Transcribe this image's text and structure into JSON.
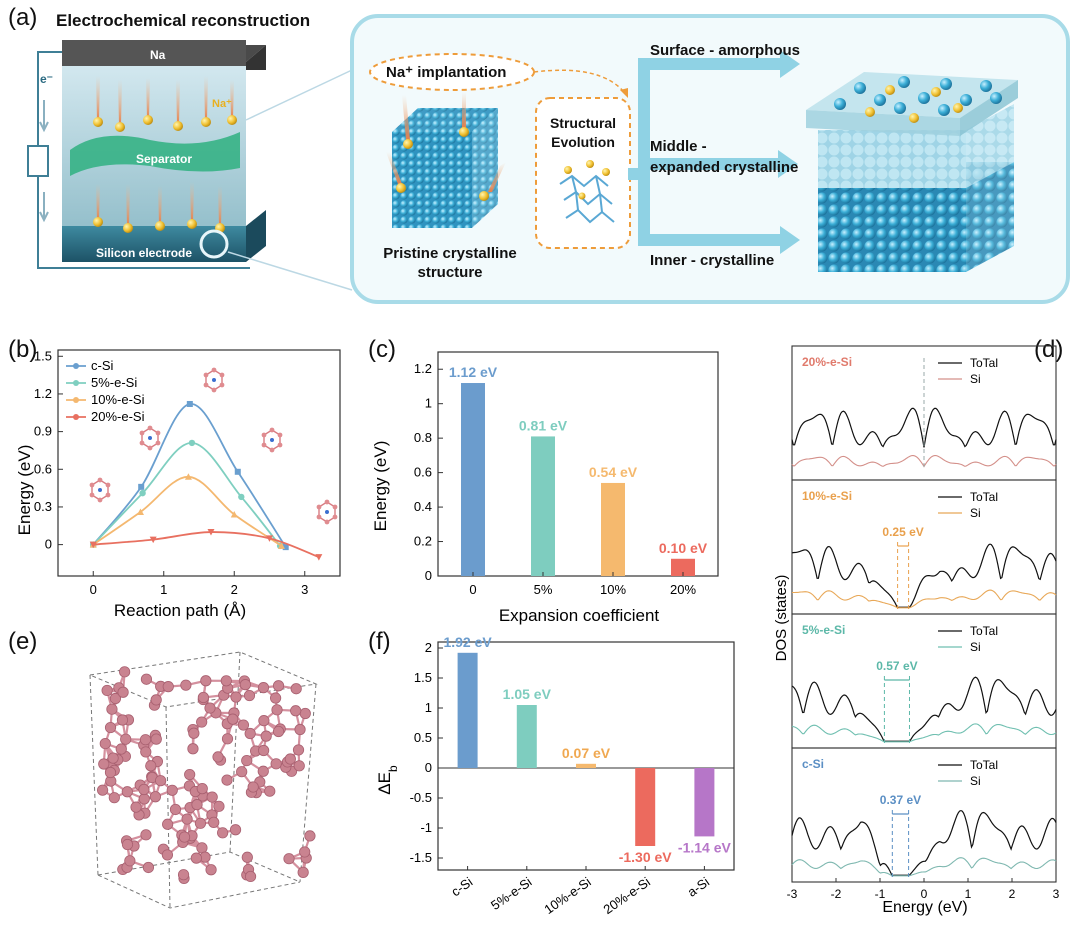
{
  "panel_a": {
    "label": "(a)",
    "title": "Electrochemical reconstruction",
    "na_label": "Na",
    "electron_label": "e⁻",
    "na_ion_label": "Na⁺",
    "separator_label": "Separator",
    "electrode_label": "Silicon electrode",
    "implantation_label": "Na⁺ implantation",
    "pristine_label_1": "Pristine crystalline",
    "pristine_label_2": "structure",
    "evolution_label_1": "Structural",
    "evolution_label_2": "Evolution",
    "surface_label": "Surface - amorphous",
    "middle_label_1": "Middle -",
    "middle_label_2": "expanded crystalline",
    "inner_label": "Inner - crystalline"
  },
  "panel_b": {
    "label": "(b)"
  },
  "panel_c": {
    "label": "(c)"
  },
  "panel_d": {
    "label": "(d)"
  },
  "panel_e": {
    "label": "(e)"
  },
  "panel_f": {
    "label": "(f)"
  },
  "chart_data": [
    {
      "id": "b",
      "type": "line",
      "xlabel": "Reaction path (Å)",
      "ylabel": "Energy (eV)",
      "xlim": [
        -0.5,
        3.5
      ],
      "ylim": [
        -0.25,
        1.55
      ],
      "xticks": [
        0,
        1,
        2,
        3
      ],
      "yticks": [
        0,
        0.3,
        0.6,
        0.9,
        1.2,
        1.5
      ],
      "series": [
        {
          "name": "c-Si",
          "color": "#6a9fcf",
          "marker": "square",
          "x": [
            0,
            0.68,
            1.37,
            2.05,
            2.73
          ],
          "y": [
            0,
            0.46,
            1.12,
            0.58,
            -0.02
          ]
        },
        {
          "name": "5%-e-Si",
          "color": "#7fcfc0",
          "marker": "circle",
          "x": [
            0,
            0.7,
            1.4,
            2.1,
            2.65
          ],
          "y": [
            0,
            0.41,
            0.81,
            0.38,
            -0.01
          ]
        },
        {
          "name": "10%-e-Si",
          "color": "#f4b870",
          "marker": "triangle-up",
          "x": [
            0,
            0.67,
            1.35,
            2.0,
            2.67
          ],
          "y": [
            0,
            0.26,
            0.54,
            0.24,
            -0.01
          ]
        },
        {
          "name": "20%-e-Si",
          "color": "#e87060",
          "marker": "triangle-down",
          "x": [
            0,
            0.85,
            1.67,
            2.5,
            3.2
          ],
          "y": [
            0,
            0.04,
            0.1,
            0.05,
            -0.1
          ]
        }
      ]
    },
    {
      "id": "c",
      "type": "bar",
      "xlabel": "Expansion coefficient",
      "ylabel": "Energy (eV)",
      "ylim": [
        0,
        1.3
      ],
      "yticks": [
        0,
        0.2,
        0.4,
        0.6,
        0.8,
        1,
        1.2
      ],
      "categories": [
        "0",
        "5%",
        "10%",
        "20%"
      ],
      "values": [
        1.12,
        0.81,
        0.54,
        0.1
      ],
      "data_labels": [
        "1.12 eV",
        "0.81 eV",
        "0.54 eV",
        "0.10 eV"
      ],
      "colors": [
        "#6b9ccd",
        "#7ecdbf",
        "#f5b96e",
        "#ec6a5e"
      ]
    },
    {
      "id": "d",
      "type": "line",
      "xlabel": "Energy (eV)",
      "ylabel": "DOS (states)",
      "xlim": [
        -3,
        3
      ],
      "xticks": [
        -3,
        -2,
        -1,
        0,
        1,
        2,
        3
      ],
      "subplots": [
        {
          "title": "20%-e-Si",
          "title_color": "#e07a6c",
          "si_color": "#d4908a",
          "gap_label": "",
          "gap": [
            -0.02,
            -0.02
          ]
        },
        {
          "title": "10%-e-Si",
          "title_color": "#e9a04c",
          "si_color": "#e8a858",
          "gap_label": "0.25 eV",
          "gap": [
            -0.6,
            -0.35
          ]
        },
        {
          "title": "5%-e-Si",
          "title_color": "#5cb8a8",
          "si_color": "#6fbfb0",
          "gap_label": "0.57 eV",
          "gap": [
            -0.9,
            -0.33
          ]
        },
        {
          "title": "c-Si",
          "title_color": "#5b8fc4",
          "si_color": "#7fb8b0",
          "gap_label": "0.37 eV",
          "gap": [
            -0.72,
            -0.35
          ]
        }
      ],
      "legend": [
        "ToTal",
        "Si"
      ]
    },
    {
      "id": "f",
      "type": "bar",
      "ylabel": "ΔE",
      "ylabel_sub": "b",
      "ylim": [
        -1.7,
        2.1
      ],
      "yticks": [
        -1.5,
        -1,
        -0.5,
        0,
        0.5,
        1,
        1.5,
        2
      ],
      "categories": [
        "c-Si",
        "5%-e-Si",
        "10%-e-Si",
        "20%-e-Si",
        "a-Si"
      ],
      "values": [
        1.92,
        1.05,
        0.07,
        -1.3,
        -1.14
      ],
      "data_labels": [
        "1.92 eV",
        "1.05 eV",
        "0.07 eV",
        "-1.30 eV",
        "-1.14 eV"
      ],
      "colors": [
        "#6b9ccd",
        "#7ecdbf",
        "#f5b96e",
        "#ec6a5e",
        "#b676c8"
      ],
      "label_colors": [
        "#6b9ccd",
        "#7ecdbf",
        "#f0a850",
        "#ec6a5e",
        "#b676c8"
      ]
    }
  ]
}
